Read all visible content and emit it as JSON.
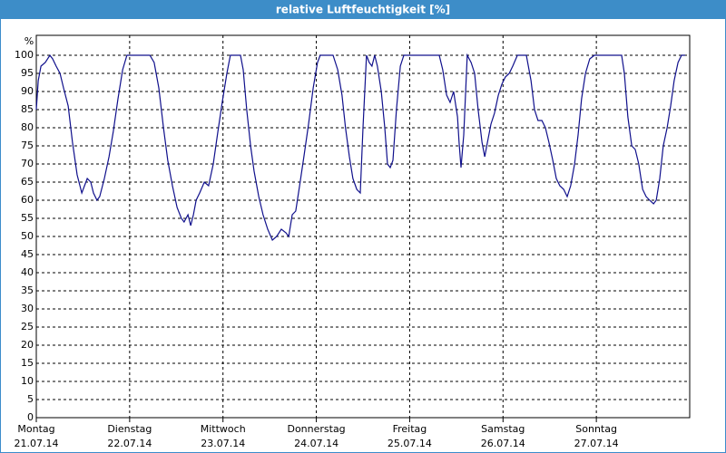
{
  "chart_data": {
    "type": "line",
    "title": "relative Luftfeuchtigkeit [%]",
    "y_label": "%",
    "xlim": [
      0,
      168
    ],
    "xticks": [
      {
        "value": 0,
        "label": "Montag"
      },
      {
        "value": 24,
        "label": "Dienstag"
      },
      {
        "value": 48,
        "label": "Mittwoch"
      },
      {
        "value": 72,
        "label": "Donnerstag"
      },
      {
        "value": 96,
        "label": "Freitag"
      },
      {
        "value": 120,
        "label": "Samstag"
      },
      {
        "value": 144,
        "label": "Sonntag"
      }
    ],
    "xtick_dates": [
      "21.07.14",
      "22.07.14",
      "23.07.14",
      "24.07.14",
      "25.07.14",
      "26.07.14",
      "27.07.14"
    ],
    "ylim": [
      0,
      100
    ],
    "yticks": [
      0,
      5,
      10,
      15,
      20,
      25,
      30,
      35,
      40,
      45,
      50,
      55,
      60,
      65,
      70,
      75,
      80,
      85,
      90,
      95,
      100
    ],
    "grid": true,
    "x": [
      0,
      0.5,
      1.2,
      2.3,
      3.5,
      4.2,
      5.1,
      6.1,
      7,
      8.2,
      9.3,
      10.5,
      11.7,
      12.4,
      13.1,
      14,
      14.7,
      15.6,
      16.3,
      17.5,
      18.7,
      19.8,
      21,
      22.2,
      23.3,
      24.5,
      25.7,
      28,
      29.2,
      30.3,
      31.5,
      32.7,
      33.8,
      35,
      36.2,
      37.3,
      38,
      39,
      39.7,
      40.4,
      41.1,
      42,
      43.2,
      44.3,
      45.5,
      46.7,
      47.8,
      49,
      49.9,
      51.3,
      52.5,
      53.2,
      54.1,
      55.1,
      56,
      57.2,
      58.3,
      59.5,
      60.7,
      61.8,
      63,
      64.2,
      64.9,
      65.8,
      66.7,
      67.7,
      68.8,
      70,
      71.2,
      72.3,
      73,
      74.7,
      76.3,
      77.5,
      78.6,
      79.5,
      80.5,
      81.4,
      82.4,
      83.3,
      84,
      84.9,
      85.6,
      86.3,
      87,
      87.7,
      88.7,
      89.6,
      90.3,
      91,
      91.7,
      92.6,
      93.6,
      94.5,
      96.8,
      100.3,
      103.6,
      104.5,
      105.5,
      106.4,
      107.3,
      108.3,
      108.7,
      109.2,
      109.9,
      110.8,
      111.8,
      112.7,
      113.6,
      114.6,
      115.3,
      116,
      116.9,
      117.8,
      118.8,
      119.7,
      120.6,
      121.6,
      122.5,
      123.7,
      126,
      127.2,
      128.1,
      129,
      130,
      130.9,
      131.8,
      132.8,
      133.7,
      134.6,
      135.6,
      136.5,
      137.4,
      138.4,
      139.3,
      140.2,
      141.2,
      142.3,
      143.5,
      147,
      150.5,
      151.2,
      152.1,
      153.1,
      154,
      154.9,
      155.9,
      156.8,
      157.7,
      158.7,
      159.4,
      160.3,
      161.2,
      162.2,
      163.1,
      164,
      165,
      165.9,
      166.8
    ],
    "series": [
      {
        "name": "relative Luftfeuchtigkeit",
        "color": "#10108c",
        "values": [
          85,
          93,
          97,
          98,
          100,
          99,
          97,
          95,
          91,
          86,
          76,
          67,
          62,
          64,
          66,
          65,
          62,
          60,
          61,
          66,
          72,
          79,
          88,
          96,
          100,
          100,
          100,
          100,
          100,
          98,
          91,
          80,
          71,
          64,
          58,
          55,
          54,
          56,
          53,
          56,
          60,
          62,
          65,
          64,
          70,
          79,
          87,
          95,
          100,
          100,
          100,
          96,
          85,
          75,
          68,
          61,
          56,
          52,
          49,
          50,
          52,
          51,
          50,
          56,
          57,
          64,
          72,
          81,
          91,
          98,
          100,
          100,
          100,
          96,
          89,
          80,
          72,
          66,
          63,
          62,
          80,
          100,
          98,
          97,
          100,
          97,
          90,
          80,
          70,
          69,
          71,
          85,
          97,
          100,
          100,
          100,
          100,
          96,
          89,
          87,
          90,
          83,
          76,
          69,
          78,
          100,
          98,
          95,
          85,
          76,
          72,
          76,
          81,
          84,
          89,
          92,
          94,
          95,
          97,
          100,
          100,
          93,
          85,
          82,
          82,
          80,
          76,
          71,
          66,
          64,
          63,
          61,
          64,
          70,
          78,
          88,
          95,
          99,
          100,
          100,
          100,
          95,
          83,
          75,
          74,
          70,
          63,
          61,
          60,
          59,
          60,
          66,
          75,
          80,
          86,
          93,
          98,
          100,
          100
        ]
      }
    ]
  }
}
